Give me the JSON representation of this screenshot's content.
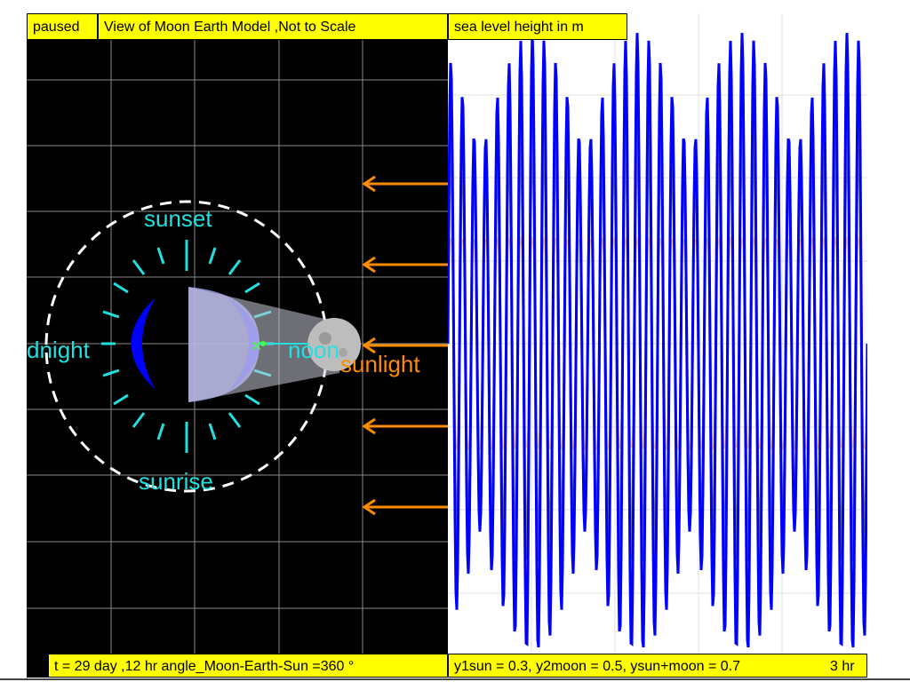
{
  "left_panel": {
    "status": "paused",
    "title": "View of Moon Earth Model ,Not to Scale",
    "labels": {
      "sunset": "sunset",
      "sunrise": "sunrise",
      "midnight": "dnight",
      "noon": "noon",
      "sunlight": "sunlight"
    },
    "info": "t = 29 day ,12 hr angle_Moon-Earth-Sun =360 °"
  },
  "right_panel": {
    "title": "sea level height in m",
    "info": "y1sun = 0.3, y2moon = 0.5, ysun+moon = 0.7",
    "time_fragment": "3 hr",
    "chart_data": {
      "type": "line",
      "title": "sea level height in m",
      "series": [
        {
          "color": "#0000ff",
          "description": "ysun+moon"
        },
        {
          "color": "#808080",
          "description": "y2moon"
        },
        {
          "color": "#ff8c00",
          "description": "y1sun"
        }
      ],
      "amplitudes": {
        "sun": 0.3,
        "moon": 0.5,
        "sun_plus_moon": 0.7
      }
    }
  },
  "colors": {
    "panel_background": "#000000",
    "label_box": "#ffff00",
    "accent_cyan": "#22e0e0",
    "sun_arrow": "#ff8c00",
    "tide_total": "#0000ff",
    "tide_moon": "#808080"
  }
}
